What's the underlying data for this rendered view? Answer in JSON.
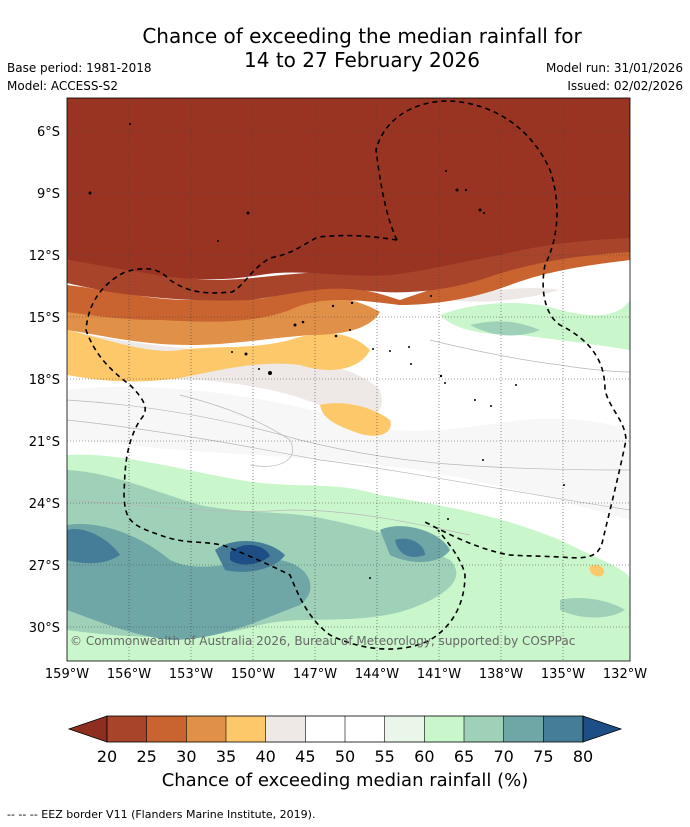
{
  "header": {
    "title_line1": "Chance of exceeding the median rainfall for",
    "title_line2": "14 to 27 February 2026",
    "base_period": "Base period: 1981-2018",
    "model": "Model: ACCESS-S2",
    "model_run": "Model run: 31/01/2026",
    "issued": "Issued: 02/02/2026"
  },
  "map": {
    "lat_labels": [
      "6°S",
      "9°S",
      "12°S",
      "15°S",
      "18°S",
      "21°S",
      "24°S",
      "27°S",
      "30°S"
    ],
    "lon_labels": [
      "159°W",
      "156°W",
      "153°W",
      "150°W",
      "147°W",
      "144°W",
      "141°W",
      "138°W",
      "135°W",
      "132°W"
    ],
    "copyright": "© Commonwealth of Australia 2026, Bureau of Meteorology, supported by COSPPac"
  },
  "colorbar": {
    "ticks": [
      "20",
      "25",
      "30",
      "35",
      "40",
      "45",
      "50",
      "55",
      "60",
      "65",
      "70",
      "75",
      "80"
    ],
    "colors": [
      "#a8442a",
      "#c9632f",
      "#e19147",
      "#fcc86a",
      "#eee9e6",
      "#ffffff",
      "#ffffff",
      "#eaf6ea",
      "#c9f7cb",
      "#9fd1b8",
      "#6fa6a6",
      "#457d98"
    ],
    "low_extend_color": "#8e2e1f",
    "high_extend_color": "#1d4f86",
    "label": "Chance of exceeding median rainfall (%)"
  },
  "footer": {
    "eez_note": "--  --  -- EEZ border V11 (Flanders Marine Institute, 2019)."
  }
}
